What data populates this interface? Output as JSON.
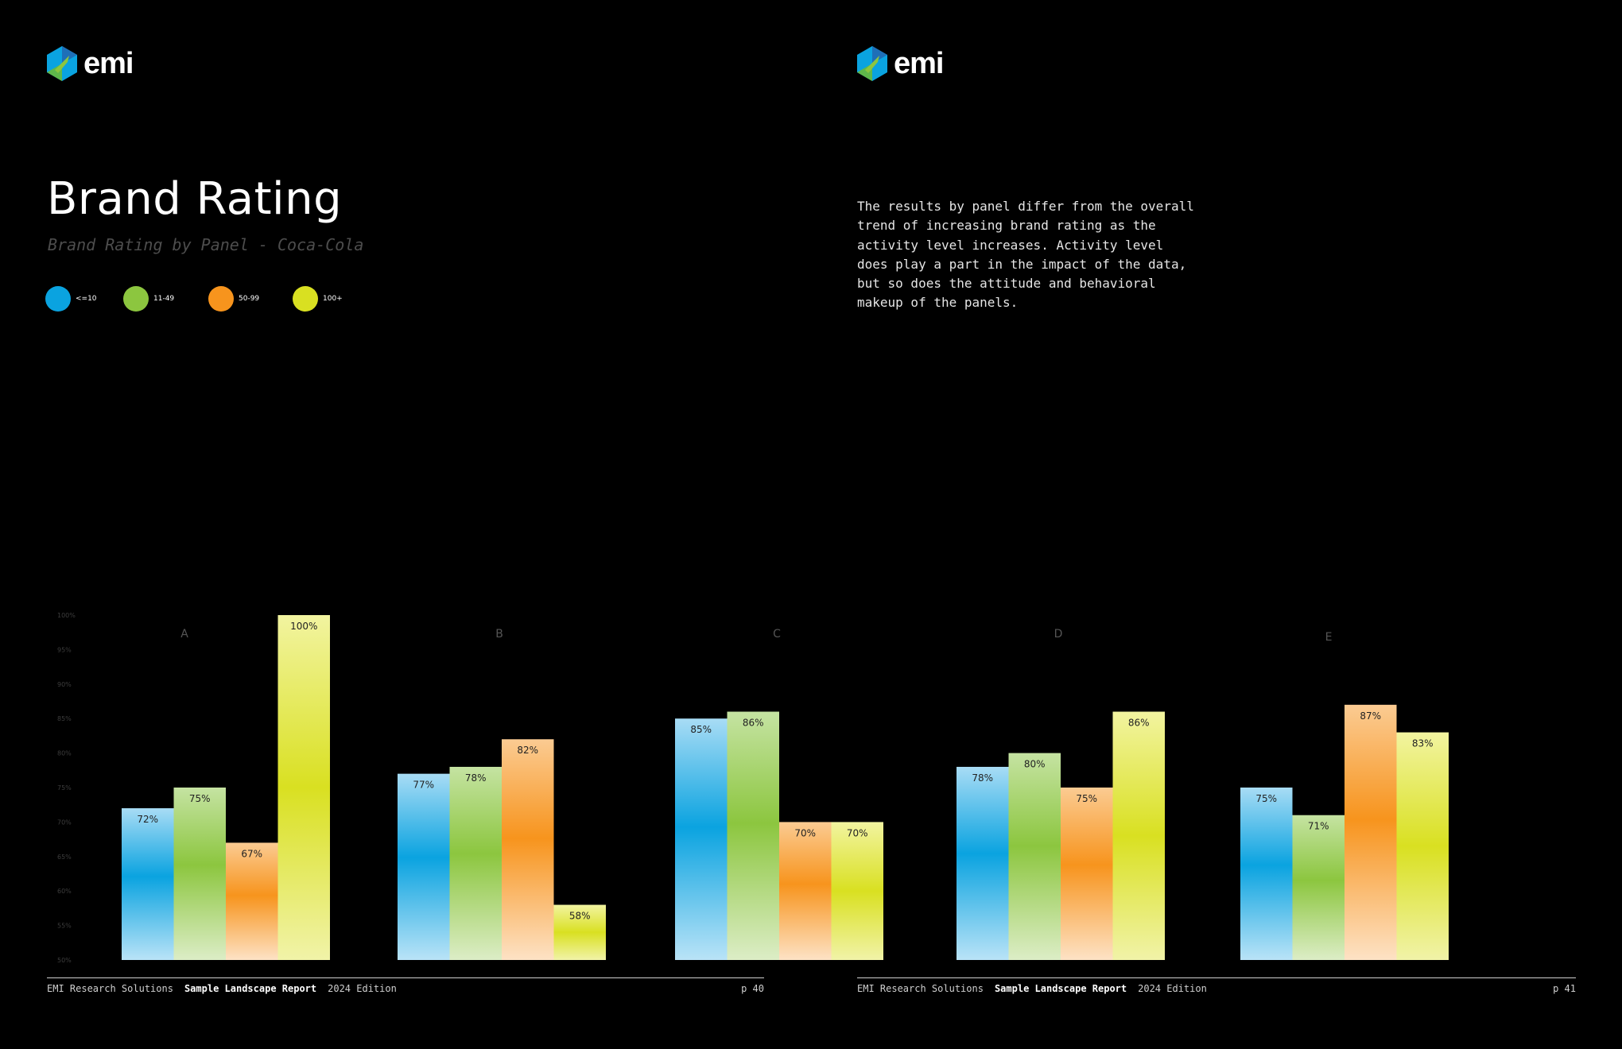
{
  "brand": {
    "name": "emi"
  },
  "header": {
    "title": "Brand Rating",
    "subtitle": "Brand Rating by Panel - Coca-Cola"
  },
  "legend": [
    {
      "label": "<=10",
      "color": "#0aa3e0"
    },
    {
      "label": "11-49",
      "color": "#8cc63f"
    },
    {
      "label": "50-99",
      "color": "#f7941d"
    },
    {
      "label": "100+",
      "color": "#d9e021"
    }
  ],
  "description": "The results by panel differ from the overall trend of increasing brand rating as the activity level increases. Activity level does play a part in the impact of the data, but so does the attitude and behavioral makeup of the panels.",
  "footer": {
    "company": "EMI Research Solutions",
    "report": "Sample Landscape Report",
    "edition": "2024 Edition",
    "page_left": "p 40",
    "page_right": "p 41"
  },
  "chart_data": {
    "type": "bar",
    "title": "Brand Rating by Panel - Coca-Cola",
    "categories": [
      "A",
      "B",
      "C",
      "D",
      "E"
    ],
    "series": [
      {
        "name": "<=10",
        "color": "#0aa3e0",
        "values": [
          72,
          77,
          85,
          78,
          75
        ]
      },
      {
        "name": "11-49",
        "color": "#8cc63f",
        "values": [
          75,
          78,
          86,
          80,
          71
        ]
      },
      {
        "name": "50-99",
        "color": "#f7941d",
        "values": [
          67,
          82,
          70,
          75,
          87
        ]
      },
      {
        "name": "100+",
        "color": "#d9e021",
        "values": [
          100,
          58,
          70,
          86,
          83
        ]
      }
    ],
    "ylim": [
      50,
      100
    ],
    "yticks": [
      "50%",
      "55%",
      "60%",
      "65%",
      "70%",
      "75%",
      "80%",
      "85%",
      "90%",
      "95%",
      "100%"
    ],
    "value_labels": [
      [
        "72%",
        "75%",
        "67%",
        "100%"
      ],
      [
        "77%",
        "78%",
        "82%",
        "58%"
      ],
      [
        "85%",
        "86%",
        "70%",
        "70%"
      ],
      [
        "78%",
        "80%",
        "75%",
        "86%"
      ],
      [
        "75%",
        "71%",
        "87%",
        "83%"
      ]
    ]
  }
}
